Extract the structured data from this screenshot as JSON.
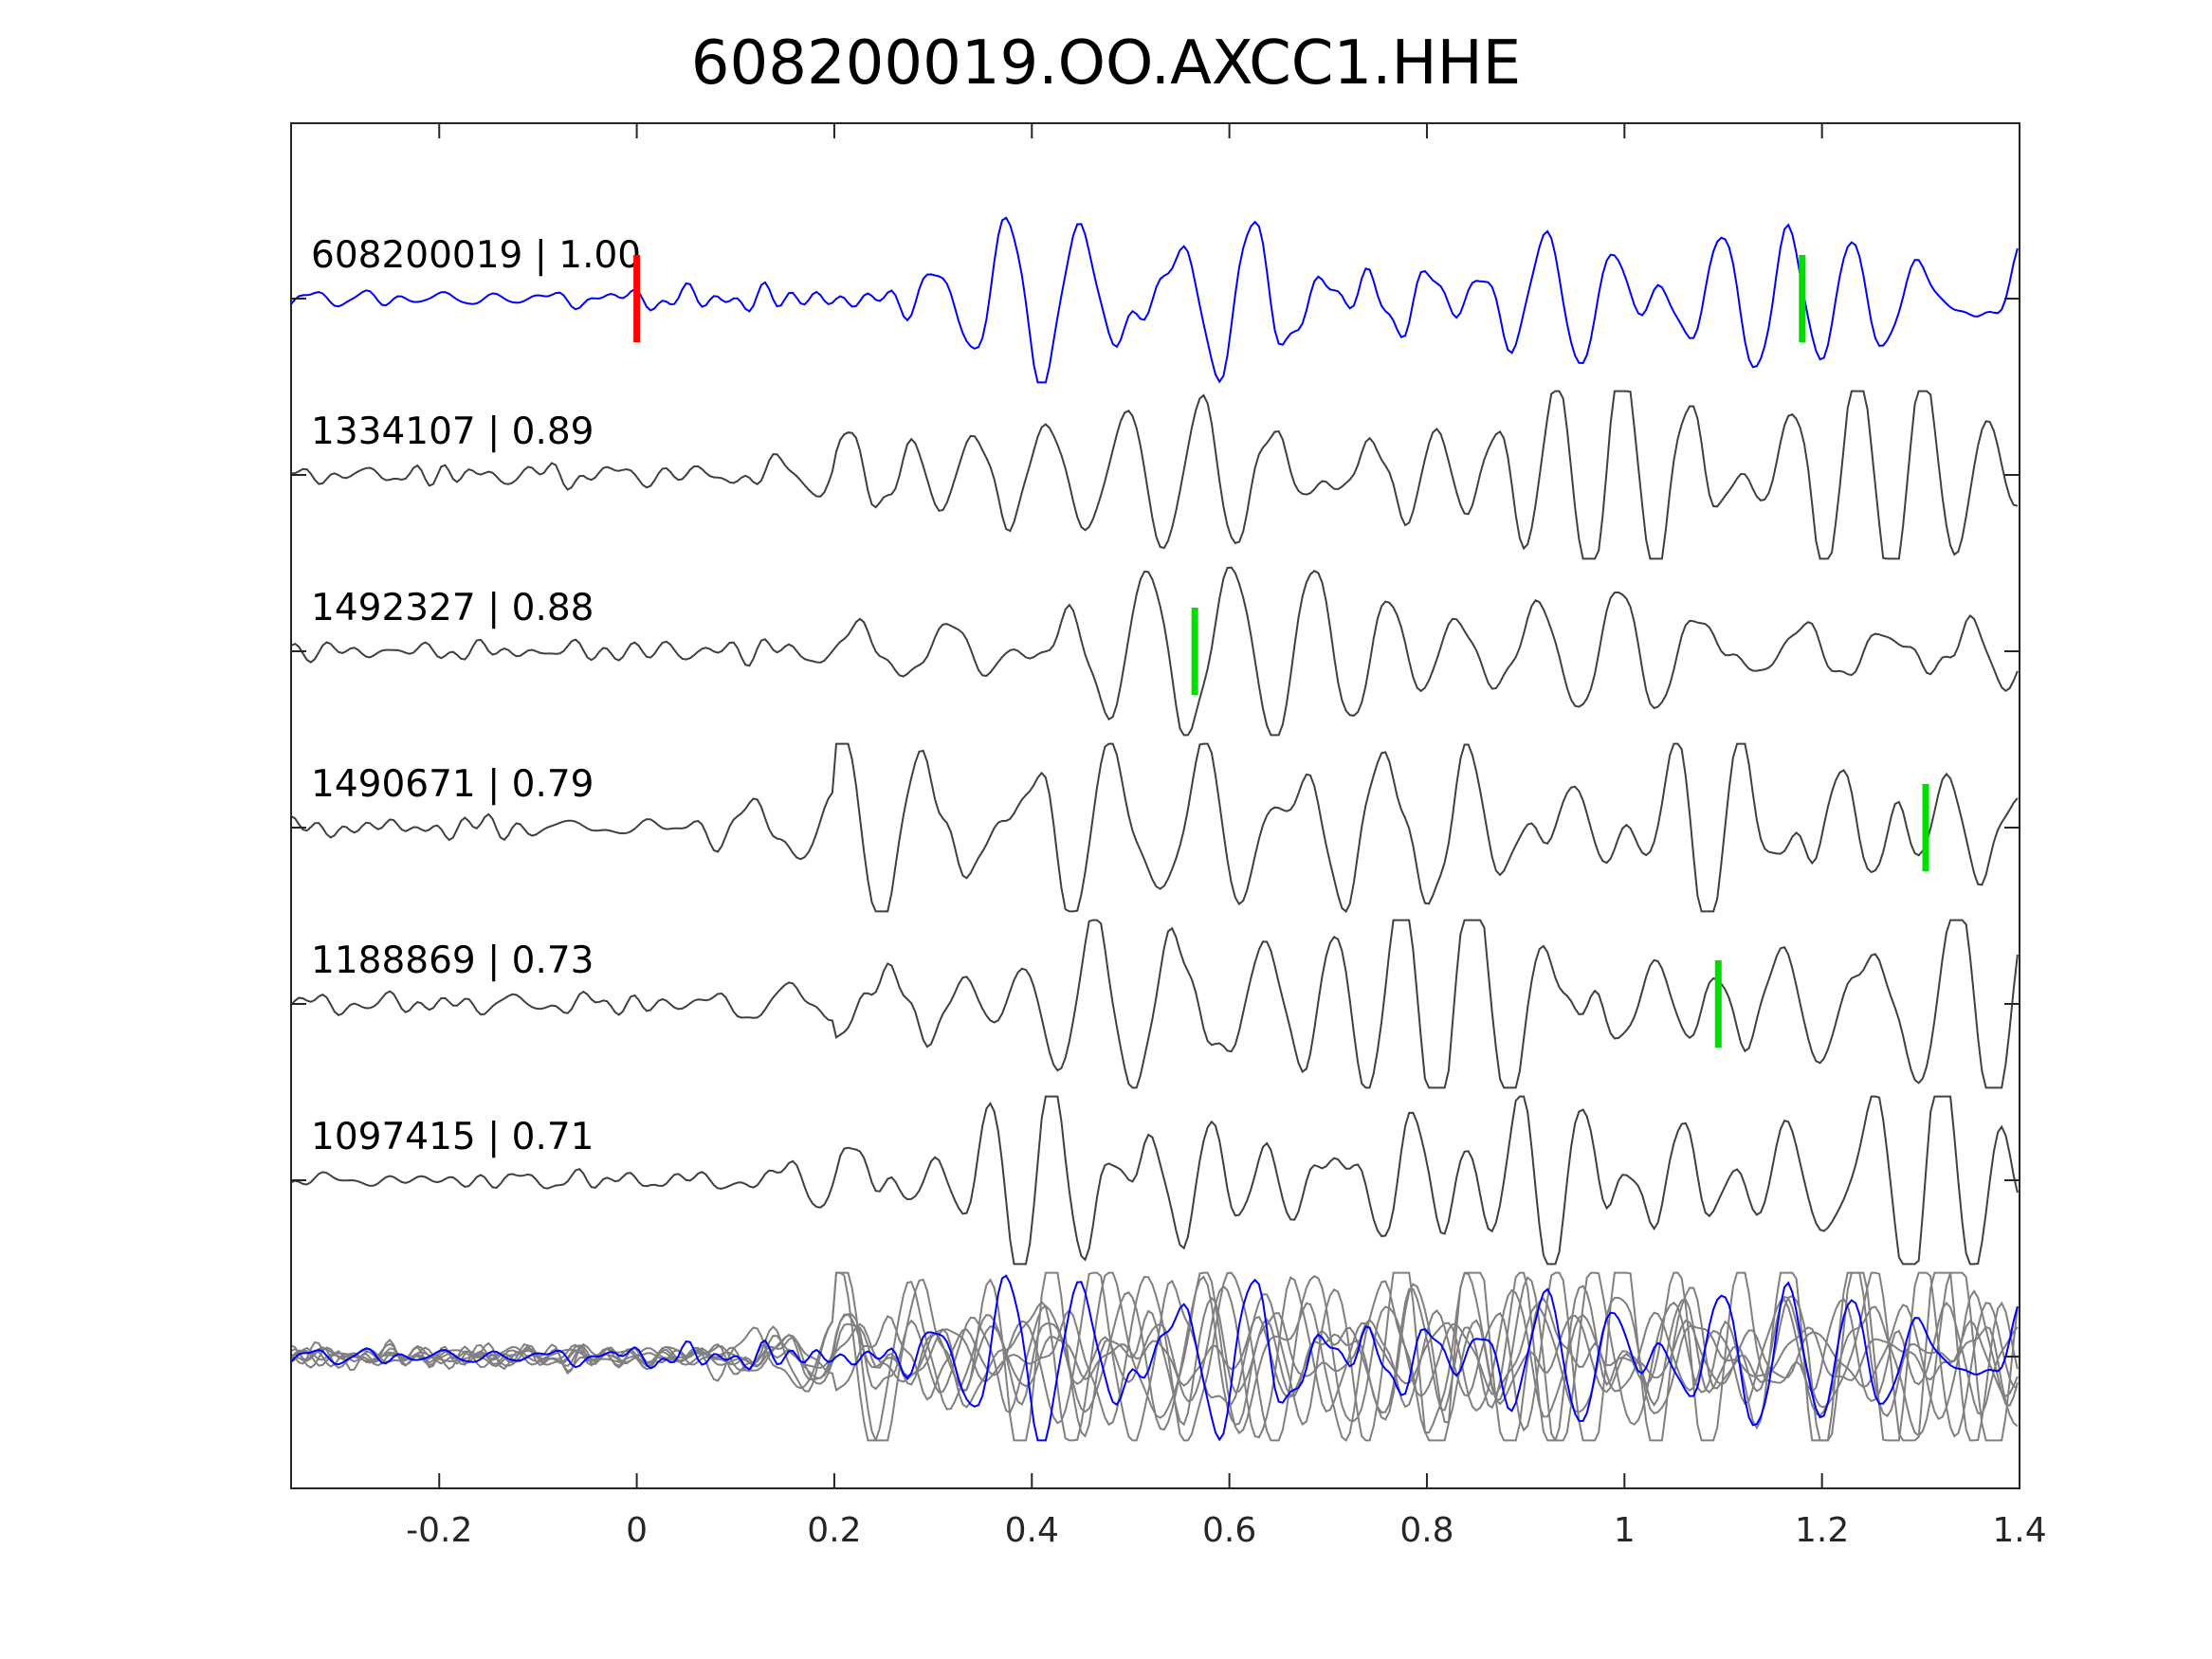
{
  "chart_data": {
    "type": "line",
    "title": "608200019.OO.AXCC1.HHE",
    "xlabel": "",
    "ylabel": "",
    "xlim": [
      -0.35,
      1.4
    ],
    "xticks": [
      -0.2,
      0,
      0.2,
      0.4,
      0.6,
      0.8,
      1,
      1.2,
      1.4
    ],
    "xtick_labels": [
      "-0.2",
      "0",
      "0.2",
      "0.4",
      "0.6",
      "0.8",
      "1",
      "1.2",
      "1.4"
    ],
    "grid": false,
    "colors": {
      "master": "#0000ff",
      "template": "#404040",
      "stack": "#808080",
      "pick_p": "#ff0000",
      "pick_s": "#00dd00"
    },
    "traces": [
      {
        "label": "608200019 | 1.00",
        "id": "608200019",
        "cc": 1.0,
        "master": true,
        "picks": [
          {
            "t": 0.0,
            "type": "red"
          },
          {
            "t": 1.18,
            "type": "green"
          }
        ],
        "seed": 11
      },
      {
        "label": "1334107 | 0.89",
        "id": "1334107",
        "cc": 0.89,
        "master": false,
        "picks": [],
        "seed": 23
      },
      {
        "label": "1492327 | 0.88",
        "id": "1492327",
        "cc": 0.88,
        "master": false,
        "picks": [
          {
            "t": 0.565,
            "type": "green"
          }
        ],
        "seed": 37
      },
      {
        "label": "1490671 | 0.79",
        "id": "1490671",
        "cc": 0.79,
        "master": false,
        "picks": [
          {
            "t": 1.305,
            "type": "green"
          }
        ],
        "seed": 41
      },
      {
        "label": "1188869 | 0.73",
        "id": "1188869",
        "cc": 0.73,
        "master": false,
        "picks": [
          {
            "t": 1.095,
            "type": "green"
          }
        ],
        "seed": 53
      },
      {
        "label": "1097415 | 0.71",
        "id": "1097415",
        "cc": 0.71,
        "master": false,
        "picks": [],
        "seed": 67
      }
    ]
  }
}
